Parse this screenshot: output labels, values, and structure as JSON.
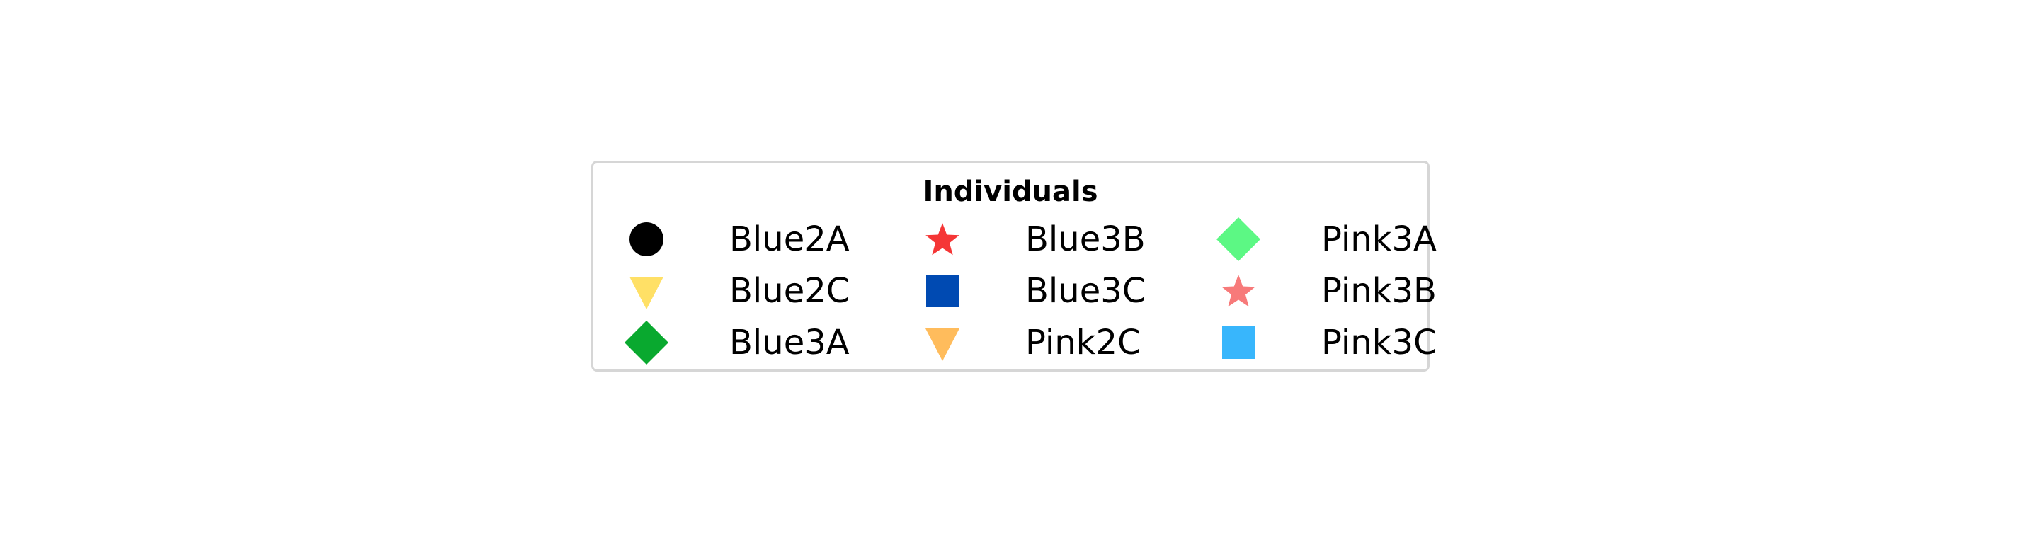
{
  "chart_data": {
    "type": "legend",
    "title": "Individuals",
    "columns": 3,
    "entries": [
      {
        "label": "Blue2A",
        "marker": "circle",
        "color": "#000000"
      },
      {
        "label": "Blue2C",
        "marker": "triangle-down",
        "color": "#ffe066"
      },
      {
        "label": "Blue3A",
        "marker": "diamond",
        "color": "#09a92f"
      },
      {
        "label": "Blue3B",
        "marker": "star",
        "color": "#f53636"
      },
      {
        "label": "Blue3C",
        "marker": "square",
        "color": "#004ab2"
      },
      {
        "label": "Pink2C",
        "marker": "triangle-down",
        "color": "#ffbc5c"
      },
      {
        "label": "Pink3A",
        "marker": "diamond",
        "color": "#5cf884"
      },
      {
        "label": "Pink3B",
        "marker": "star",
        "color": "#f77a7a"
      },
      {
        "label": "Pink3C",
        "marker": "square",
        "color": "#38b6fc"
      }
    ]
  }
}
